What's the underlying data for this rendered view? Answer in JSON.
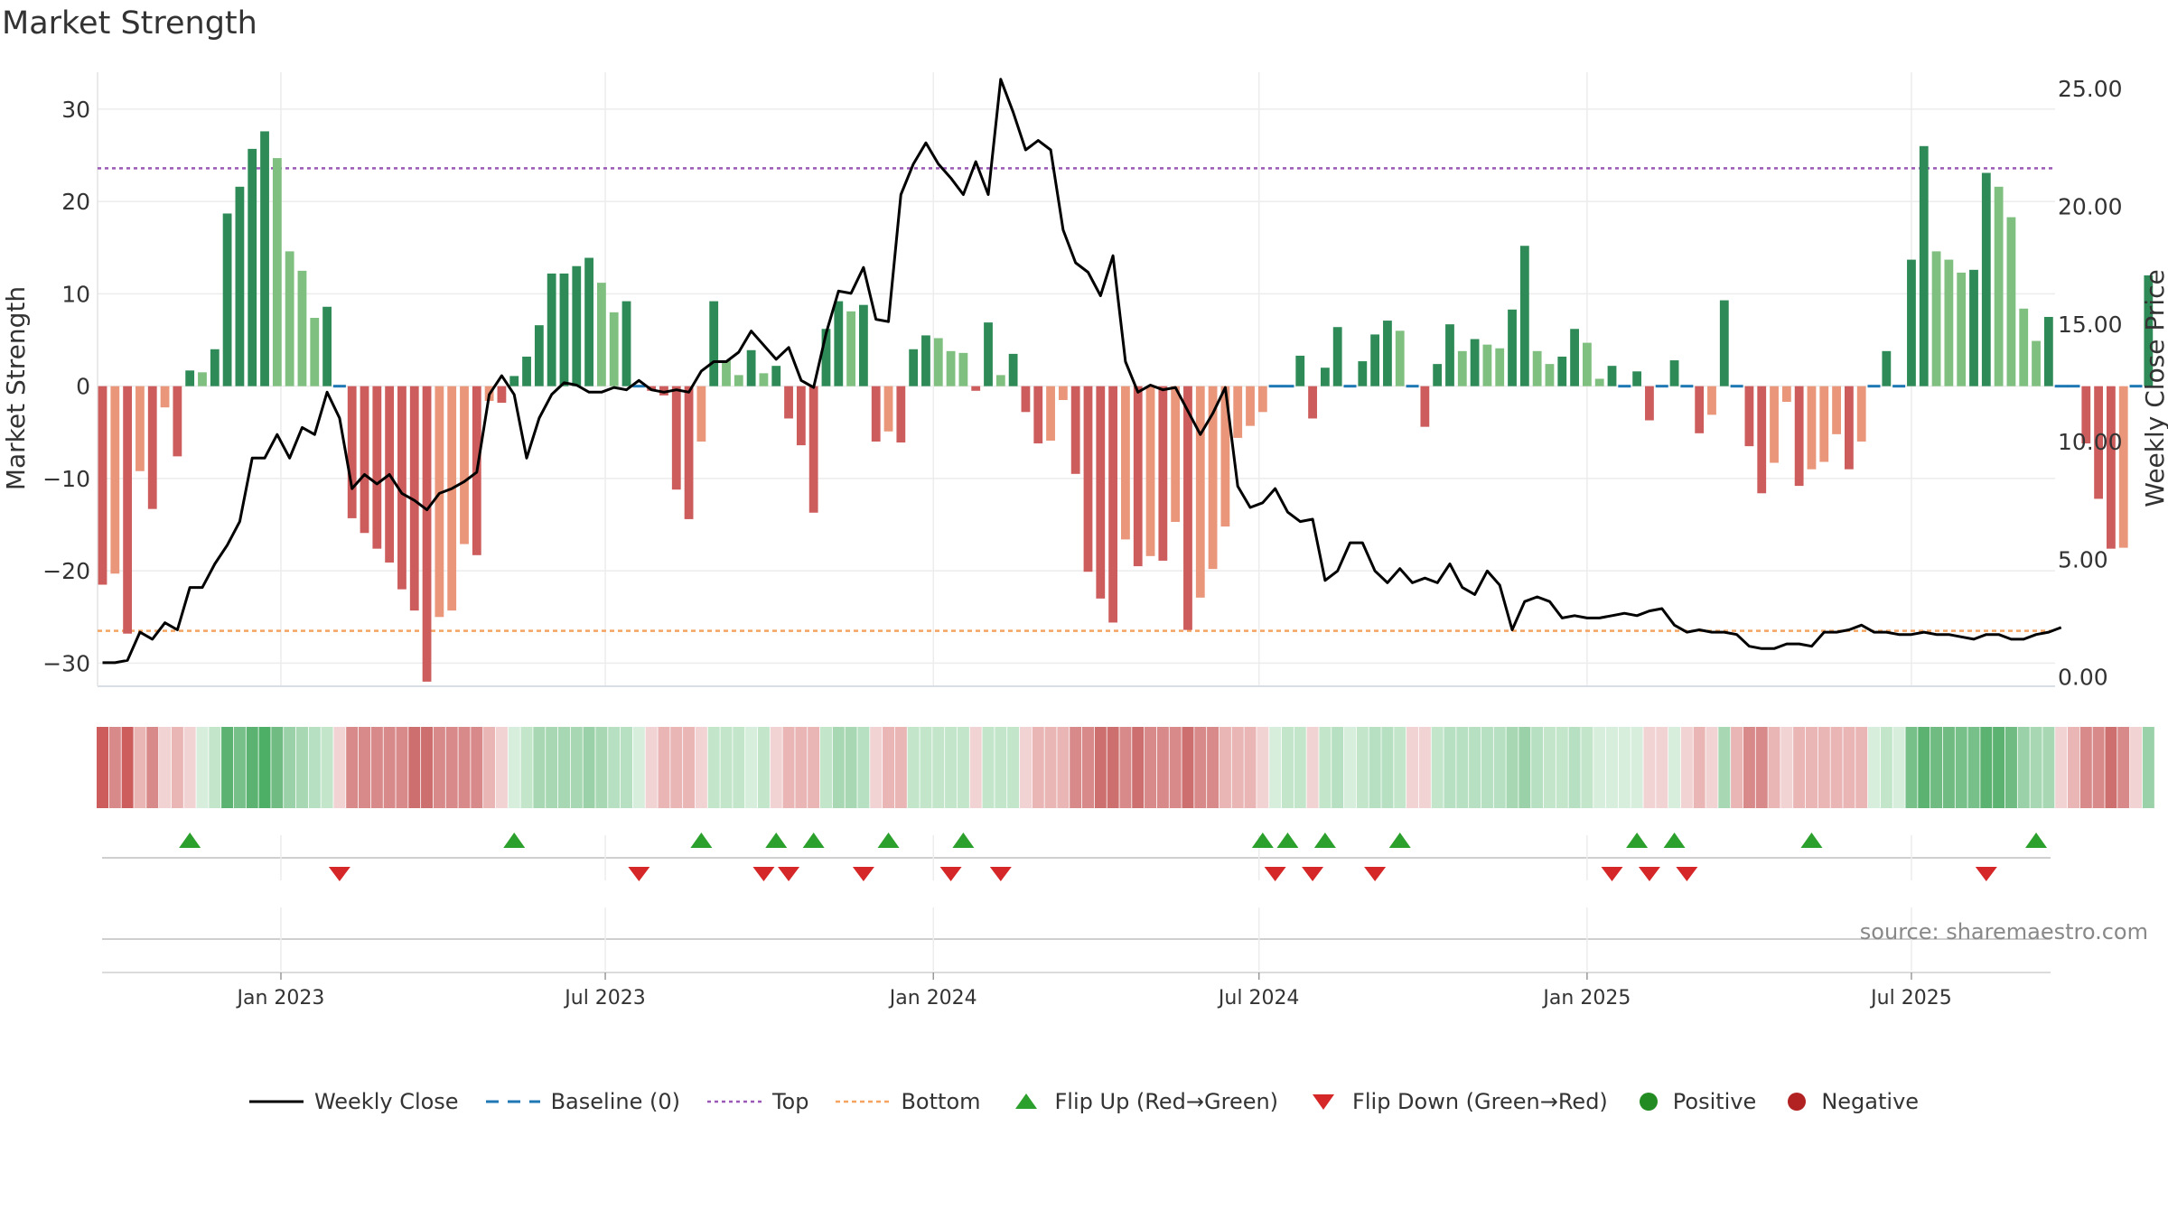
{
  "title": "Market Strength",
  "source": "source: sharemaestro.com",
  "colors": {
    "strong_green": "#2e8b57",
    "light_green": "#7fbf7f",
    "strong_red": "#cd5c5c",
    "light_red": "#e9967a",
    "close_line": "#000000",
    "baseline": "#1f77b4",
    "top": "#9b59b6",
    "bottom": "#f4a460",
    "flip_up": "#2ca02c",
    "flip_down": "#d62728",
    "positive": "#228b22",
    "negative": "#b22222"
  },
  "chart_data": {
    "type": "bar",
    "title": "Market Strength",
    "ylabel": "Market Strength",
    "y2label": "Weekly Close Price",
    "ylim": [
      -32.5,
      34
    ],
    "y2lim": [
      -0.4,
      25.7
    ],
    "yticks": [
      "30",
      "20",
      "10",
      "0",
      "−10",
      "−20",
      "−30"
    ],
    "y2ticks": [
      "25.00",
      "20.00",
      "15.00",
      "10.00",
      "5.00",
      "0.00"
    ],
    "x_tick_labels": [
      "Jan 2023",
      "Jul 2023",
      "Jan 2024",
      "Jul 2024",
      "Jan 2025",
      "Jul 2025"
    ],
    "x_tick_weeks": [
      14.3,
      40.3,
      66.6,
      92.7,
      119,
      145
    ],
    "top_level": 23.6,
    "bottom_level": -26.5,
    "strength": [
      -21.5,
      -20.3,
      -26.8,
      -9.2,
      -13.3,
      -2.3,
      -7.6,
      1.7,
      1.5,
      4,
      18.7,
      21.6,
      25.7,
      27.6,
      24.7,
      14.6,
      12.5,
      7.4,
      8.6,
      0,
      -14.3,
      -15.9,
      -17.6,
      -19.1,
      -22,
      -24.3,
      -32,
      -25,
      -24.3,
      -17.1,
      -18.3,
      -1.6,
      -1.8,
      1.1,
      3.2,
      6.6,
      12.2,
      12.2,
      13,
      13.9,
      11.2,
      8,
      9.2,
      0,
      -0.5,
      -1,
      -11.2,
      -14.4,
      -6,
      9.2,
      2.8,
      1.2,
      3.9,
      1.4,
      2.2,
      -3.5,
      -6.4,
      -13.7,
      6.2,
      9.2,
      8.1,
      8.8,
      -6,
      -4.9,
      -6.1,
      4,
      5.5,
      5.2,
      3.8,
      3.6,
      -0.5,
      6.9,
      1.2,
      3.5,
      -2.8,
      -6.2,
      -5.9,
      -1.5,
      -9.5,
      -20.1,
      -23,
      -25.6,
      -16.6,
      -19.5,
      -18.4,
      -18.9,
      -14.7,
      -26.4,
      -22.9,
      -19.8,
      -15.2,
      -5.6,
      -4.3,
      -2.8,
      0,
      0,
      3.3,
      -3.5,
      2,
      6.4,
      0,
      2.7,
      5.6,
      7.1,
      6,
      0,
      -4.4,
      2.4,
      6.7,
      3.8,
      5.1,
      4.5,
      4.1,
      8.3,
      15.2,
      3.8,
      2.4,
      3.2,
      6.2,
      4.7,
      0.8,
      2.2,
      0,
      1.6,
      -3.7,
      0,
      2.8,
      0,
      -5.1,
      -3.1,
      9.3,
      0,
      -6.5,
      -11.6,
      -8.3,
      -1.7,
      -10.8,
      -9,
      -8.2,
      -5.2,
      -9,
      -6,
      0,
      3.8,
      0,
      13.7,
      26,
      14.6,
      13.7,
      12.3,
      12.6,
      23.1,
      21.6,
      18.3,
      8.4,
      4.9,
      7.5,
      0,
      0,
      -6.2,
      -12.2,
      -17.6,
      -17.5,
      0,
      12
    ],
    "close": [
      0.6,
      0.6,
      0.7,
      1.9,
      1.6,
      2.3,
      2,
      3.8,
      3.8,
      4.8,
      5.6,
      6.6,
      9.3,
      9.3,
      10.3,
      9.3,
      10.6,
      10.3,
      12.1,
      11,
      8,
      8.6,
      8.2,
      8.6,
      7.8,
      7.5,
      7.1,
      7.8,
      8,
      8.3,
      8.7,
      12,
      12.8,
      12,
      9.3,
      11,
      12,
      12.5,
      12.4,
      12.1,
      12.1,
      12.3,
      12.2,
      12.6,
      12.2,
      12.1,
      12.2,
      12.1,
      13,
      13.4,
      13.4,
      13.8,
      14.7,
      14.1,
      13.5,
      14,
      12.6,
      12.3,
      14.6,
      16.4,
      16.3,
      17.4,
      15.2,
      15.1,
      20.5,
      21.8,
      22.7,
      21.8,
      21.2,
      20.5,
      21.9,
      20.5,
      25.4,
      24,
      22.4,
      22.8,
      22.4,
      19,
      17.6,
      17.2,
      16.2,
      17.9,
      13.4,
      12.1,
      12.4,
      12.2,
      12.3,
      11.3,
      10.3,
      11.2,
      12.3,
      8.1,
      7.2,
      7.4,
      8,
      7,
      6.6,
      6.7,
      4.1,
      4.5,
      5.7,
      5.7,
      4.5,
      4,
      4.6,
      4,
      4.2,
      4,
      4.8,
      3.8,
      3.5,
      4.5,
      3.9,
      2,
      3.2,
      3.4,
      3.2,
      2.5,
      2.6,
      2.5,
      2.5,
      2.6,
      2.7,
      2.6,
      2.8,
      2.9,
      2.2,
      1.9,
      2,
      1.9,
      1.9,
      1.8,
      1.3,
      1.2,
      1.2,
      1.4,
      1.4,
      1.3,
      1.9,
      1.9,
      2,
      2.2,
      1.9,
      1.9,
      1.8,
      1.8,
      1.9,
      1.8,
      1.8,
      1.7,
      1.6,
      1.8,
      1.8,
      1.6,
      1.6,
      1.8,
      1.9,
      2.1
    ],
    "gradient_colors": [
      "#cd5c5c",
      "#d88a8a",
      "#cd5c5c",
      "#e9b5b5",
      "#d88a8a",
      "#f2d3d3",
      "#e9b5b5",
      "#f2d3d3",
      "#d8eedd",
      "#c3e6cb",
      "#5cb270",
      "#78c08a",
      "#5cb270",
      "#4caf65",
      "#6fbb82",
      "#9bd1a8",
      "#a8d8b3",
      "#b7dfc1",
      "#c3e6cb",
      "#f2d3d3",
      "#d88a8a",
      "#d88a8a",
      "#d88a8a",
      "#d88a8a",
      "#d88a8a",
      "#cd6f6f",
      "#cd6f6f",
      "#d88a8a",
      "#d88a8a",
      "#d88a8a",
      "#d88a8a",
      "#e9b5b5",
      "#f2d3d3",
      "#d8eedd",
      "#c3e6cb",
      "#a8d8b3",
      "#a8d8b3",
      "#a8d8b3",
      "#a8d8b3",
      "#9bd1a8",
      "#a8d8b3",
      "#b7dfc1",
      "#b7dfc1",
      "#d8eedd",
      "#f2d3d3",
      "#e9b5b5",
      "#e9b5b5",
      "#e9b5b5",
      "#f2d3d3",
      "#c3e6cb",
      "#c3e6cb",
      "#c3e6cb",
      "#d8eedd",
      "#c3e6cb",
      "#f2d3d3",
      "#e9b5b5",
      "#e9b5b5",
      "#e9b5b5",
      "#c3e6cb",
      "#a8d8b3",
      "#a8d8b3",
      "#b7dfc1",
      "#f2d3d3",
      "#e9b5b5",
      "#e9b5b5",
      "#c3e6cb",
      "#c3e6cb",
      "#c3e6cb",
      "#c3e6cb",
      "#c3e6cb",
      "#f2d3d3",
      "#c3e6cb",
      "#c3e6cb",
      "#c3e6cb",
      "#f2d3d3",
      "#e9b5b5",
      "#e9b5b5",
      "#e9b5b5",
      "#d88a8a",
      "#d88a8a",
      "#cd6f6f",
      "#cd6f6f",
      "#d88a8a",
      "#cd6f6f",
      "#d88a8a",
      "#d88a8a",
      "#d88a8a",
      "#cd6f6f",
      "#d88a8a",
      "#d88a8a",
      "#e9b5b5",
      "#e9b5b5",
      "#e9b5b5",
      "#f2d3d3",
      "#d8eedd",
      "#c3e6cb",
      "#c3e6cb",
      "#f2d3d3",
      "#c3e6cb",
      "#b7dfc1",
      "#d8eedd",
      "#c3e6cb",
      "#b7dfc1",
      "#b7dfc1",
      "#c3e6cb",
      "#f2d3d3",
      "#f2d3d3",
      "#c3e6cb",
      "#b7dfc1",
      "#b7dfc1",
      "#b7dfc1",
      "#b7dfc1",
      "#b7dfc1",
      "#a8d8b3",
      "#9bd1a8",
      "#b7dfc1",
      "#c3e6cb",
      "#c3e6cb",
      "#b7dfc1",
      "#c3e6cb",
      "#d8eedd",
      "#d8eedd",
      "#d8eedd",
      "#d8eedd",
      "#f2d3d3",
      "#f2d3d3",
      "#d8eedd",
      "#f2d3d3",
      "#e9b5b5",
      "#f2d3d3",
      "#a8d8b3",
      "#e9b5b5",
      "#d88a8a",
      "#d88a8a",
      "#e9b5b5",
      "#f2d3d3",
      "#e9b5b5",
      "#e9b5b5",
      "#e9b5b5",
      "#e9b5b5",
      "#e9b5b5",
      "#e9b5b5",
      "#d8eedd",
      "#c3e6cb",
      "#d8eedd",
      "#78c08a",
      "#5cb270",
      "#6fbb82",
      "#6fbb82",
      "#78c08a",
      "#78c08a",
      "#5cb270",
      "#5cb270",
      "#6fbb82",
      "#9bd1a8",
      "#a8d8b3",
      "#a8d8b3",
      "#f2d3d3",
      "#e9b5b5",
      "#d88a8a",
      "#d88a8a",
      "#cd6f6f",
      "#d88a8a",
      "#f2d3d3",
      "#9bd1a8"
    ],
    "flip_up_weeks": [
      7,
      33,
      48,
      54,
      57,
      63,
      69,
      93,
      95,
      98,
      104,
      123,
      126,
      137,
      155
    ],
    "flip_down_weeks": [
      19,
      43,
      53,
      55,
      61,
      68,
      72,
      94,
      97,
      102,
      121,
      124,
      127,
      151
    ],
    "legend": [
      {
        "label": "Weekly Close",
        "kind": "line"
      },
      {
        "label": "Baseline (0)",
        "kind": "dash"
      },
      {
        "label": "Top",
        "kind": "dot-purple"
      },
      {
        "label": "Bottom",
        "kind": "dot-orange"
      },
      {
        "label": "Flip Up (Red→Green)",
        "kind": "tri-up"
      },
      {
        "label": "Flip Down (Green→Red)",
        "kind": "tri-down"
      },
      {
        "label": "Positive",
        "kind": "circle-green"
      },
      {
        "label": "Negative",
        "kind": "circle-red"
      }
    ]
  }
}
